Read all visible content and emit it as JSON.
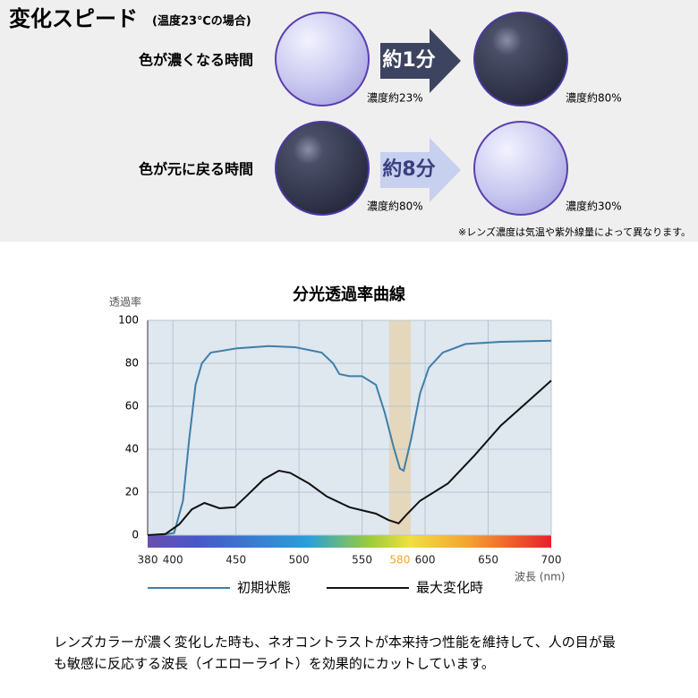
{
  "header": {
    "title": "変化スピード",
    "subtitle": "(温度23℃の場合)"
  },
  "rows": [
    {
      "label": "色が濃くなる時間",
      "time": "約1分",
      "from": "濃度約23%",
      "to": "濃度約80%"
    },
    {
      "label": "色が元に戻る時間",
      "time": "約8分",
      "from": "濃度約80%",
      "to": "濃度約30%"
    }
  ],
  "note": "※レンズ濃度は気温や紫外線量によって異なります。",
  "chart_data": {
    "type": "line",
    "title": "分光透過率曲線",
    "y_label": "透過率",
    "x_label": "波長 (nm)",
    "xlim": [
      380,
      700
    ],
    "xticks": [
      380,
      400,
      450,
      500,
      550,
      580,
      600,
      650,
      700
    ],
    "ylim": [
      0,
      100
    ],
    "yticks": [
      0,
      20,
      40,
      60,
      80,
      100
    ],
    "grid": true,
    "highlight": {
      "x": 580,
      "color": "#f5a623"
    },
    "series": [
      {
        "name": "初期状態",
        "color": "#3f7fa8",
        "x": [
          380,
          390,
          401,
          408,
          413,
          418,
          423,
          430,
          451,
          476,
          497,
          518,
          527,
          532,
          540,
          550,
          561,
          568,
          575,
          580,
          583,
          589,
          596,
          603,
          614,
          632,
          660,
          700
        ],
        "values": [
          0,
          0,
          1,
          16,
          45,
          70,
          80,
          85,
          87,
          88,
          87.5,
          85,
          80,
          75,
          74,
          74,
          70,
          57,
          41,
          31,
          30,
          45,
          66,
          78,
          85,
          89,
          90,
          90.5
        ]
      },
      {
        "name": "最大変化時",
        "color": "#111111",
        "x": [
          380,
          394,
          405,
          415,
          425,
          437,
          449,
          458,
          472,
          484,
          493,
          508,
          522,
          540,
          561,
          571,
          579,
          586,
          596,
          618,
          639,
          660,
          681,
          700
        ],
        "values": [
          0,
          0.5,
          5,
          12,
          15,
          12.5,
          13,
          18,
          26,
          30,
          29,
          24,
          18,
          13,
          10,
          7,
          5.5,
          10,
          16,
          24,
          37,
          51,
          62,
          72
        ]
      }
    ]
  },
  "footer": {
    "lines": [
      "レンズカラーが濃く変化した時も、ネオコントラストが本来持つ性能を維持して、人の目が最",
      "も敏感に反応する波長（イエローライト）を効果的にカットしています。"
    ]
  }
}
